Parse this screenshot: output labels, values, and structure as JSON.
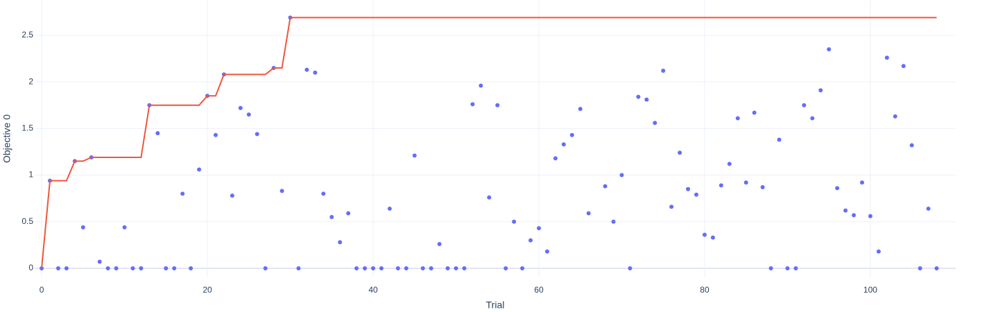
{
  "chart_data": {
    "type": "scatter",
    "xlabel": "Trial",
    "ylabel": "Objective 0",
    "xlim": [
      -0.84,
      110.3
    ],
    "ylim": [
      -0.097,
      2.879
    ],
    "xticks": [
      0,
      20,
      40,
      60,
      80,
      100
    ],
    "yticks": [
      0,
      0.5,
      1,
      1.5,
      2,
      2.5
    ],
    "grid": true,
    "x": [
      0,
      1,
      2,
      3,
      4,
      5,
      6,
      7,
      8,
      9,
      10,
      11,
      12,
      13,
      14,
      15,
      16,
      17,
      18,
      19,
      20,
      21,
      22,
      23,
      24,
      25,
      26,
      27,
      28,
      29,
      30,
      31,
      32,
      33,
      34,
      35,
      36,
      37,
      38,
      39,
      40,
      41,
      42,
      43,
      44,
      45,
      46,
      47,
      48,
      49,
      50,
      51,
      52,
      53,
      54,
      55,
      56,
      57,
      58,
      59,
      60,
      61,
      62,
      63,
      64,
      65,
      66,
      68,
      69,
      70,
      71,
      72,
      73,
      74,
      75,
      76,
      77,
      78,
      79,
      80,
      81,
      82,
      83,
      84,
      85,
      86,
      87,
      88,
      89,
      90,
      91,
      92,
      93,
      94,
      95,
      96,
      97,
      98,
      99,
      100,
      101,
      102,
      103,
      104,
      105,
      106,
      107,
      108
    ],
    "series": [
      {
        "mode": "markers",
        "color": "#636efa",
        "values": [
          0,
          0.94,
          0,
          0,
          1.15,
          0.44,
          1.19,
          0.07,
          0,
          0,
          0.44,
          0,
          0,
          1.75,
          1.45,
          0,
          0,
          0.8,
          0,
          1.06,
          1.85,
          1.43,
          2.08,
          0.78,
          1.72,
          1.65,
          1.44,
          0,
          2.15,
          0.83,
          2.69,
          0,
          2.13,
          2.1,
          0.8,
          0.55,
          0.28,
          0.59,
          0,
          0,
          0,
          0,
          0.64,
          0,
          0,
          1.21,
          0,
          0,
          0.26,
          0,
          0,
          0,
          1.76,
          1.96,
          0.76,
          1.75,
          0,
          0.5,
          0,
          0.3,
          0.43,
          0.18,
          1.18,
          1.33,
          1.43,
          1.71,
          0.59,
          0.88,
          0.5,
          1.0,
          0,
          1.84,
          1.81,
          1.56,
          2.12,
          0.66,
          1.24,
          0.85,
          0.79,
          0.36,
          0.33,
          0.89,
          1.12,
          1.61,
          0.92,
          1.67,
          0.87,
          0,
          1.38,
          0,
          0,
          1.75,
          1.61,
          1.91,
          2.35,
          0.86,
          0.62,
          0.57,
          0.92,
          0.56,
          0.18,
          2.26,
          1.63,
          2.17,
          1.32,
          0,
          0.64,
          0
        ]
      },
      {
        "mode": "lines",
        "color": "#ef553b",
        "values": [
          0,
          0.94,
          0.94,
          0.94,
          1.15,
          1.15,
          1.19,
          1.19,
          1.19,
          1.19,
          1.19,
          1.19,
          1.19,
          1.75,
          1.75,
          1.75,
          1.75,
          1.75,
          1.75,
          1.75,
          1.85,
          1.85,
          2.08,
          2.08,
          2.08,
          2.08,
          2.08,
          2.08,
          2.15,
          2.15,
          2.69,
          2.69,
          2.69,
          2.69,
          2.69,
          2.69,
          2.69,
          2.69,
          2.69,
          2.69,
          2.69,
          2.69,
          2.69,
          2.69,
          2.69,
          2.69,
          2.69,
          2.69,
          2.69,
          2.69,
          2.69,
          2.69,
          2.69,
          2.69,
          2.69,
          2.69,
          2.69,
          2.69,
          2.69,
          2.69,
          2.69,
          2.69,
          2.69,
          2.69,
          2.69,
          2.69,
          2.69,
          2.69,
          2.69,
          2.69,
          2.69,
          2.69,
          2.69,
          2.69,
          2.69,
          2.69,
          2.69,
          2.69,
          2.69,
          2.69,
          2.69,
          2.69,
          2.69,
          2.69,
          2.69,
          2.69,
          2.69,
          2.69,
          2.69,
          2.69,
          2.69,
          2.69,
          2.69,
          2.69,
          2.69,
          2.69,
          2.69,
          2.69,
          2.69,
          2.69,
          2.69,
          2.69,
          2.69,
          2.69,
          2.69,
          2.69,
          2.69,
          2.69
        ]
      }
    ]
  }
}
